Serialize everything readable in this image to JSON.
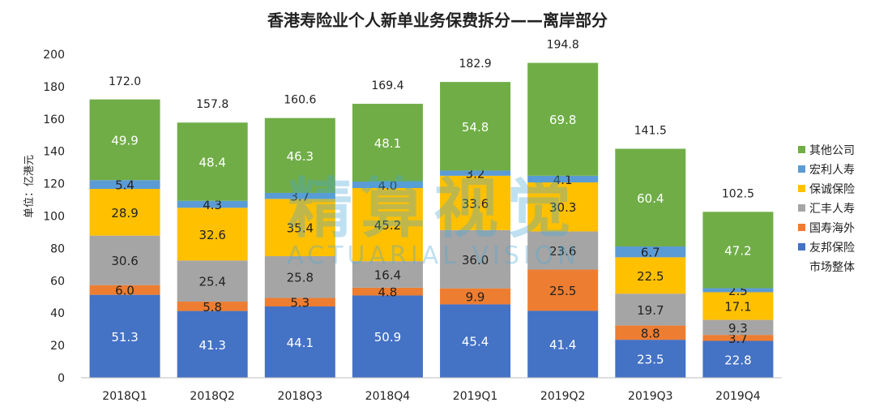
{
  "chart_data": {
    "type": "bar",
    "stacked": true,
    "title": "香港寿险业个人新单业务保费拆分——离岸部分",
    "ylabel": "单位：亿港元",
    "xlabel": "",
    "ylim": [
      0,
      200
    ],
    "yticks": [
      "0",
      "20",
      "40",
      "60",
      "80",
      "100",
      "120",
      "140",
      "160",
      "180",
      "200"
    ],
    "categories": [
      "2018Q1",
      "2018Q2",
      "2018Q3",
      "2018Q4",
      "2019Q1",
      "2019Q2",
      "2019Q3",
      "2019Q4"
    ],
    "series": [
      {
        "name": "友邦保险",
        "color": "#4472c4",
        "label_color": "#ffffff",
        "values": [
          51.3,
          41.3,
          44.1,
          50.9,
          45.4,
          41.4,
          23.5,
          22.8
        ]
      },
      {
        "name": "国寿海外",
        "color": "#ed7d31",
        "label_color": "#222222",
        "values": [
          6.0,
          5.8,
          5.3,
          4.8,
          9.9,
          25.5,
          8.8,
          3.7
        ]
      },
      {
        "name": "汇丰人寿",
        "color": "#a5a5a5",
        "label_color": "#222222",
        "values": [
          30.6,
          25.4,
          25.8,
          16.4,
          36.0,
          23.6,
          19.7,
          9.3
        ]
      },
      {
        "name": "保诚保险",
        "color": "#ffc000",
        "label_color": "#222222",
        "values": [
          28.9,
          32.6,
          35.4,
          45.2,
          33.6,
          30.3,
          22.5,
          17.1
        ]
      },
      {
        "name": "宏利人寿",
        "color": "#5b9bd5",
        "label_color": "#222222",
        "values": [
          5.4,
          4.3,
          3.7,
          4.0,
          3.2,
          4.1,
          6.7,
          2.5
        ]
      },
      {
        "name": "其他公司",
        "color": "#70ad47",
        "label_color": "#ffffff",
        "values": [
          49.9,
          48.4,
          46.3,
          48.1,
          54.8,
          69.8,
          60.4,
          47.2
        ]
      }
    ],
    "totals": {
      "name": "市场整体",
      "values": [
        "172.0",
        "157.8",
        "160.6",
        "169.4",
        "182.9",
        "194.8",
        "141.5",
        "102.5"
      ]
    },
    "legend": [
      "其他公司",
      "宏利人寿",
      "保诚保险",
      "汇丰人寿",
      "国寿海外",
      "友邦保险",
      "市场整体"
    ],
    "legend_position": "right",
    "grid": false
  },
  "watermark": {
    "cn": "精算视觉",
    "en": "ACTUARIAL VISION"
  }
}
